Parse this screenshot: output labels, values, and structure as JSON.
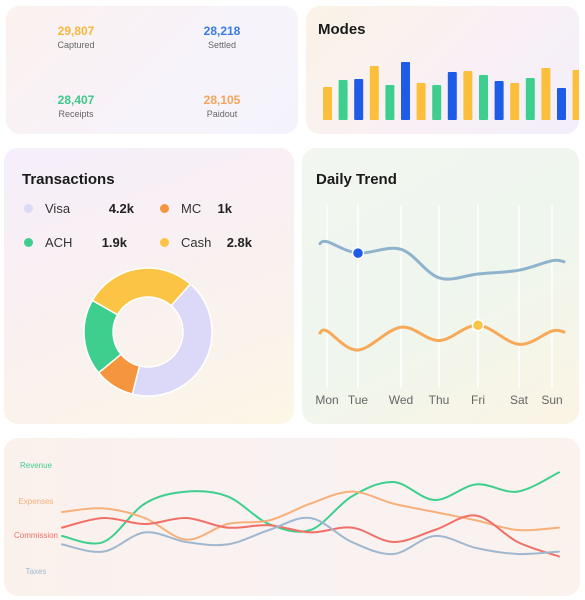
{
  "kpis": [
    {
      "value": "29,807",
      "label": "Captured",
      "color": "#f5b83d"
    },
    {
      "value": "28,218",
      "label": "Settled",
      "color": "#3a7be0"
    },
    {
      "value": "28,407",
      "label": "Receipts",
      "color": "#3ec98a"
    },
    {
      "value": "28,105",
      "label": "Paidout",
      "color": "#f5a35b"
    }
  ],
  "modes": {
    "title": "Modes",
    "chart_data": {
      "type": "bar",
      "values": [
        33,
        40,
        41,
        54,
        35,
        58,
        37,
        35,
        48,
        49,
        45,
        39,
        37,
        42,
        52,
        32,
        50
      ],
      "colors": [
        "#fbbf3c",
        "#3ecf8e",
        "#1e5be6",
        "#fbbf3c",
        "#3ecf8e",
        "#1e5be6",
        "#fbbf3c",
        "#3ecf8e",
        "#1e5be6",
        "#fbbf3c",
        "#3ecf8e",
        "#1e5be6",
        "#fbbf3c",
        "#3ecf8e",
        "#fbbf3c",
        "#1e5be6",
        "#fbbf3c"
      ],
      "ylim": [
        0,
        60
      ]
    }
  },
  "transactions": {
    "title": "Transactions",
    "legend": [
      {
        "name": "Visa",
        "value": "4.2k",
        "color": "#dcd8f7"
      },
      {
        "name": "MC",
        "value": "1k",
        "color": "#f5953e"
      },
      {
        "name": "ACH",
        "value": "1.9k",
        "color": "#3ecf8e"
      },
      {
        "name": "Cash",
        "value": "2.8k",
        "color": "#fcc444"
      }
    ],
    "chart_data": {
      "type": "pie",
      "labels": [
        "Visa",
        "MC",
        "ACH",
        "Cash"
      ],
      "values": [
        4.2,
        1.0,
        1.9,
        2.8
      ],
      "colors": [
        "#dcd8f7",
        "#f5953e",
        "#3ecf8e",
        "#fcc444"
      ]
    }
  },
  "daily": {
    "title": "Daily Trend",
    "chart_data": {
      "type": "line",
      "x": [
        "Mon",
        "Tue",
        "Wed",
        "Thu",
        "Fri",
        "Sat",
        "Sun"
      ],
      "series": [
        {
          "color": "#8fb3cc",
          "values": [
            77,
            71,
            73,
            58,
            60,
            62,
            67
          ],
          "marker_index": 1,
          "marker_color": "#1e5be6"
        },
        {
          "color": "#f7a95a",
          "values": [
            30,
            20,
            32,
            25,
            33,
            23,
            30
          ],
          "marker_index": 4,
          "marker_color": "#fcc444"
        }
      ],
      "ylim": [
        0,
        100
      ]
    }
  },
  "bottom": {
    "chart_data": {
      "type": "line",
      "series": [
        {
          "name": "Revenue",
          "color": "#3ecf8e",
          "values": [
            35,
            30,
            62,
            72,
            68,
            45,
            40,
            68,
            80,
            65,
            78,
            72,
            88
          ]
        },
        {
          "name": "Expenses",
          "color": "#f7b07a",
          "values": [
            55,
            58,
            50,
            32,
            45,
            48,
            62,
            72,
            62,
            55,
            48,
            40,
            42
          ]
        },
        {
          "name": "Commission",
          "color": "#f07068",
          "values": [
            42,
            50,
            45,
            50,
            42,
            44,
            38,
            42,
            30,
            40,
            52,
            30,
            18
          ]
        },
        {
          "name": "Taxes",
          "color": "#9fb8d0",
          "values": [
            28,
            22,
            38,
            30,
            28,
            40,
            50,
            30,
            20,
            35,
            25,
            20,
            22
          ]
        }
      ],
      "ylim": [
        0,
        100
      ]
    }
  }
}
